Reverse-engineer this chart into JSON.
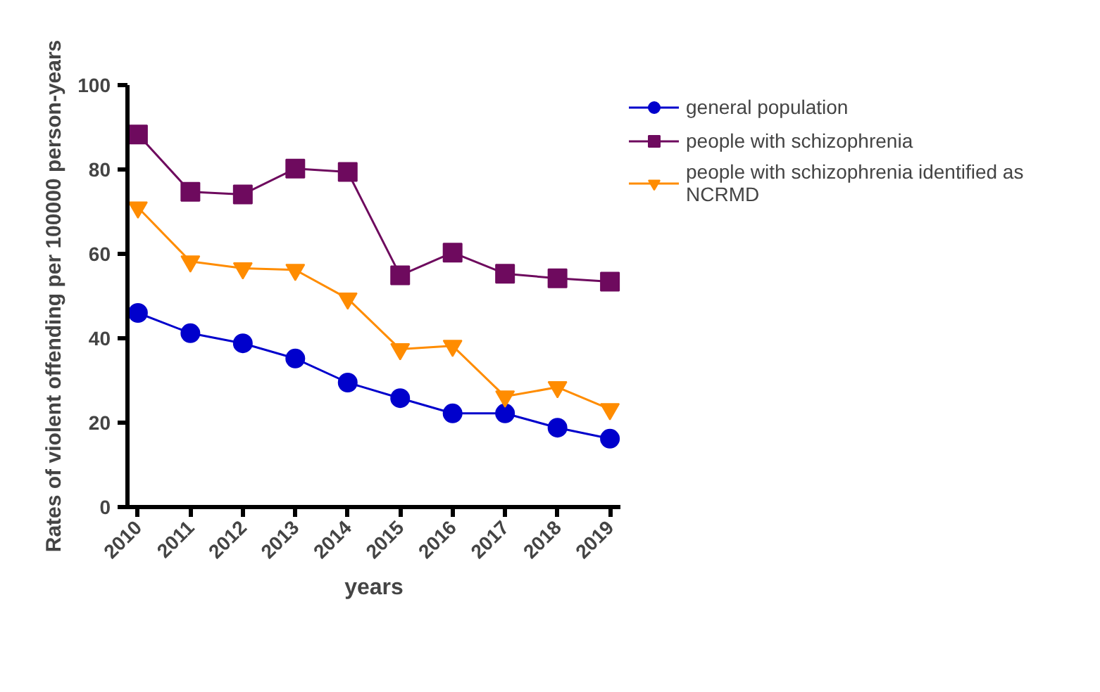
{
  "chart_data": {
    "type": "line",
    "xlabel": "years",
    "ylabel": "Rates of violent offending per 100000 person-years",
    "categories": [
      "2010",
      "2011",
      "2012",
      "2013",
      "2014",
      "2015",
      "2016",
      "2017",
      "2018",
      "2019"
    ],
    "series": [
      {
        "name": "general population",
        "color": "#0000cc",
        "marker": "circle",
        "values": [
          46,
          41.2,
          38.8,
          35.2,
          29.5,
          25.8,
          22.2,
          22.2,
          18.8,
          16.2
        ]
      },
      {
        "name": "people with schizophrenia",
        "color": "#6e0a5e",
        "marker": "square",
        "values": [
          88.3,
          74.7,
          74.1,
          80.2,
          79.4,
          54.9,
          60.3,
          55.3,
          54.2,
          53.4
        ]
      },
      {
        "name": "people with schizophrenia identified as NCRMD",
        "color": "#ff8c00",
        "marker": "triangle",
        "values": [
          71,
          58.2,
          56.6,
          56.2,
          49.4,
          37.4,
          38.2,
          26.2,
          28.4,
          23.2
        ]
      }
    ],
    "ylim": [
      0,
      100
    ],
    "yticks": [
      0,
      20,
      40,
      60,
      80,
      100
    ],
    "grid": false,
    "legend": "top right",
    "line_style": "solid"
  }
}
